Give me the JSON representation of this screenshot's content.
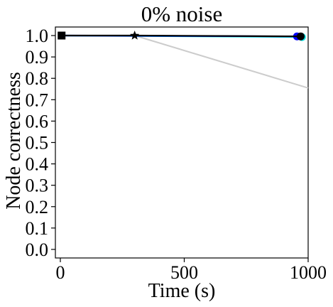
{
  "chart_data": {
    "type": "line",
    "title": "0% noise",
    "xlabel": "Time (s)",
    "ylabel": "Node correctness",
    "xlim": [
      -20,
      1000
    ],
    "ylim": [
      -0.04,
      1.04
    ],
    "x_ticks": [
      0,
      500,
      1000
    ],
    "x_tick_labels": [
      "0",
      "500",
      "1000"
    ],
    "y_ticks": [
      0.0,
      0.1,
      0.2,
      0.3,
      0.4,
      0.5,
      0.6,
      0.7,
      0.8,
      0.9,
      1.0
    ],
    "y_tick_labels": [
      "0.0",
      "0.1",
      "0.2",
      "0.3",
      "0.4",
      "0.5",
      "0.6",
      "0.7",
      "0.8",
      "0.9",
      "1.0"
    ],
    "grid": false,
    "legend": "none",
    "series": [
      {
        "color": "#cccccc",
        "x": [
          300,
          1000
        ],
        "y": [
          1.0,
          0.755
        ],
        "marker": "none"
      },
      {
        "color": "#00e5e5",
        "x": [
          5,
          975
        ],
        "y": [
          1.0,
          0.993
        ],
        "marker": "circle"
      },
      {
        "color": "#0000ff",
        "x": [
          5,
          955
        ],
        "y": [
          1.0,
          0.996
        ],
        "marker": "circle"
      },
      {
        "color": "#000000",
        "x": [
          5,
          300,
          970
        ],
        "y": [
          1.0,
          1.0,
          0.996
        ],
        "marker": "circle"
      }
    ],
    "markers": [
      {
        "x": 5,
        "y": 1.0,
        "shape": "square",
        "color": "#000000"
      },
      {
        "x": 300,
        "y": 1.0,
        "shape": "star",
        "color": "#000000"
      }
    ]
  }
}
